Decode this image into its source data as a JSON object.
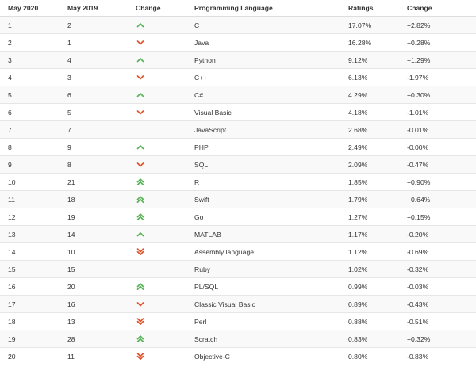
{
  "colors": {
    "up": "#59b358",
    "down": "#e0522a",
    "row_alt": "#f9f9f9",
    "border": "#e6e6e6"
  },
  "table": {
    "headers": [
      "May 2020",
      "May 2019",
      "Change",
      "Programming Language",
      "Ratings",
      "Change"
    ],
    "rows": [
      {
        "rank_2020": "1",
        "rank_2019": "2",
        "trend": "up",
        "language": "C",
        "rating": "17.07%",
        "change": "+2.82%"
      },
      {
        "rank_2020": "2",
        "rank_2019": "1",
        "trend": "down",
        "language": "Java",
        "rating": "16.28%",
        "change": "+0.28%"
      },
      {
        "rank_2020": "3",
        "rank_2019": "4",
        "trend": "up",
        "language": "Python",
        "rating": "9.12%",
        "change": "+1.29%"
      },
      {
        "rank_2020": "4",
        "rank_2019": "3",
        "trend": "down",
        "language": "C++",
        "rating": "6.13%",
        "change": "-1.97%"
      },
      {
        "rank_2020": "5",
        "rank_2019": "6",
        "trend": "up",
        "language": "C#",
        "rating": "4.29%",
        "change": "+0.30%"
      },
      {
        "rank_2020": "6",
        "rank_2019": "5",
        "trend": "down",
        "language": "Visual Basic",
        "rating": "4.18%",
        "change": "-1.01%"
      },
      {
        "rank_2020": "7",
        "rank_2019": "7",
        "trend": "none",
        "language": "JavaScript",
        "rating": "2.68%",
        "change": "-0.01%"
      },
      {
        "rank_2020": "8",
        "rank_2019": "9",
        "trend": "up",
        "language": "PHP",
        "rating": "2.49%",
        "change": "-0.00%"
      },
      {
        "rank_2020": "9",
        "rank_2019": "8",
        "trend": "down",
        "language": "SQL",
        "rating": "2.09%",
        "change": "-0.47%"
      },
      {
        "rank_2020": "10",
        "rank_2019": "21",
        "trend": "up2",
        "language": "R",
        "rating": "1.85%",
        "change": "+0.90%"
      },
      {
        "rank_2020": "11",
        "rank_2019": "18",
        "trend": "up2",
        "language": "Swift",
        "rating": "1.79%",
        "change": "+0.64%"
      },
      {
        "rank_2020": "12",
        "rank_2019": "19",
        "trend": "up2",
        "language": "Go",
        "rating": "1.27%",
        "change": "+0.15%"
      },
      {
        "rank_2020": "13",
        "rank_2019": "14",
        "trend": "up",
        "language": "MATLAB",
        "rating": "1.17%",
        "change": "-0.20%"
      },
      {
        "rank_2020": "14",
        "rank_2019": "10",
        "trend": "down2",
        "language": "Assembly language",
        "rating": "1.12%",
        "change": "-0.69%"
      },
      {
        "rank_2020": "15",
        "rank_2019": "15",
        "trend": "none",
        "language": "Ruby",
        "rating": "1.02%",
        "change": "-0.32%"
      },
      {
        "rank_2020": "16",
        "rank_2019": "20",
        "trend": "up2",
        "language": "PL/SQL",
        "rating": "0.99%",
        "change": "-0.03%"
      },
      {
        "rank_2020": "17",
        "rank_2019": "16",
        "trend": "down",
        "language": "Classic Visual Basic",
        "rating": "0.89%",
        "change": "-0.43%"
      },
      {
        "rank_2020": "18",
        "rank_2019": "13",
        "trend": "down2",
        "language": "Perl",
        "rating": "0.88%",
        "change": "-0.51%"
      },
      {
        "rank_2020": "19",
        "rank_2019": "28",
        "trend": "up2",
        "language": "Scratch",
        "rating": "0.83%",
        "change": "+0.32%"
      },
      {
        "rank_2020": "20",
        "rank_2019": "11",
        "trend": "down2",
        "language": "Objective-C",
        "rating": "0.80%",
        "change": "-0.83%"
      }
    ]
  }
}
